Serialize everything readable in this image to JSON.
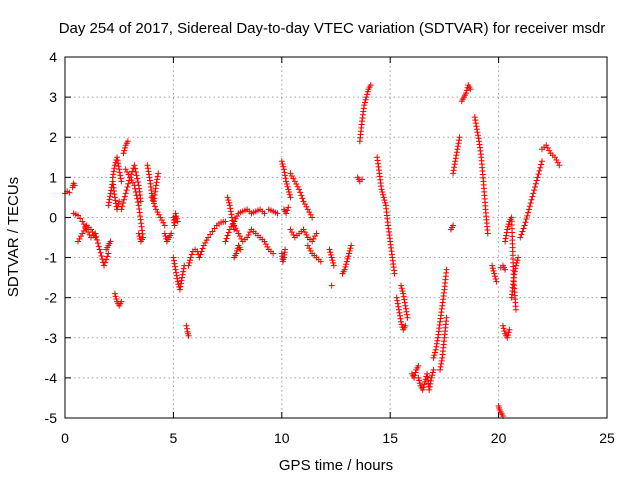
{
  "chart_data": {
    "type": "scatter",
    "title": "Day 254 of 2017, Sidereal Day-to-day VTEC variation (SDTVAR) for receiver msdr",
    "xlabel": "GPS time / hours",
    "ylabel": "SDTVAR / TECUs",
    "xlim": [
      0,
      25
    ],
    "ylim": [
      -5,
      4
    ],
    "xticks": [
      0,
      5,
      10,
      15,
      20,
      25
    ],
    "yticks": [
      4,
      3,
      2,
      1,
      0,
      -1,
      -2,
      -3,
      -4,
      -5
    ],
    "grid": true,
    "marker": "+",
    "color": "#ff0000",
    "segments": [
      {
        "x": [
          0.0,
          0.1,
          0.2
        ],
        "y": [
          0.6,
          0.65,
          0.62
        ]
      },
      {
        "x": [
          0.35,
          0.4,
          0.45
        ],
        "y": [
          0.75,
          0.85,
          0.8
        ]
      },
      {
        "x": [
          0.4,
          0.6,
          0.8,
          1.0,
          1.2,
          1.4,
          1.6,
          1.8,
          2.0
        ],
        "y": [
          0.1,
          0.05,
          -0.1,
          -0.3,
          -0.5,
          -0.4,
          -0.8,
          -1.2,
          -0.9
        ]
      },
      {
        "x": [
          0.6,
          0.8,
          1.0,
          1.2,
          1.4
        ],
        "y": [
          -0.6,
          -0.4,
          -0.2,
          -0.3,
          -0.5
        ]
      },
      {
        "x": [
          1.9,
          2.0,
          2.1
        ],
        "y": [
          -0.8,
          -0.7,
          -0.6
        ]
      },
      {
        "x": [
          2.2,
          2.3,
          2.4,
          2.5,
          2.6
        ],
        "y": [
          1.0,
          1.3,
          1.5,
          1.2,
          0.9
        ]
      },
      {
        "x": [
          2.0,
          2.1,
          2.2,
          2.3,
          2.4,
          2.5
        ],
        "y": [
          0.3,
          0.6,
          0.9,
          0.5,
          0.2,
          0.4
        ]
      },
      {
        "x": [
          2.3,
          2.4,
          2.5,
          2.6
        ],
        "y": [
          -1.9,
          -2.1,
          -2.2,
          -2.1
        ]
      },
      {
        "x": [
          2.7,
          2.8,
          2.9
        ],
        "y": [
          1.6,
          1.8,
          1.9
        ]
      },
      {
        "x": [
          2.6,
          2.8,
          3.0,
          3.2,
          3.4,
          3.5
        ],
        "y": [
          0.2,
          0.6,
          1.0,
          1.3,
          0.8,
          0.4
        ]
      },
      {
        "x": [
          2.8,
          3.0,
          3.2,
          3.4,
          3.6
        ],
        "y": [
          1.2,
          1.0,
          0.8,
          0.3,
          -0.5
        ]
      },
      {
        "x": [
          3.4,
          3.5,
          3.6
        ],
        "y": [
          -0.4,
          -0.6,
          -0.5
        ]
      },
      {
        "x": [
          3.8,
          3.9,
          4.0,
          4.1,
          4.2,
          4.3
        ],
        "y": [
          1.3,
          1.0,
          0.6,
          0.4,
          0.8,
          1.1
        ]
      },
      {
        "x": [
          4.0,
          4.2,
          4.4,
          4.6
        ],
        "y": [
          0.5,
          0.2,
          0.0,
          -0.2
        ]
      },
      {
        "x": [
          4.6,
          4.7,
          4.8,
          4.9
        ],
        "y": [
          -0.4,
          -0.6,
          -0.5,
          -0.4
        ]
      },
      {
        "x": [
          5.0,
          5.05,
          5.1,
          5.2
        ],
        "y": [
          0.0,
          -0.2,
          0.1,
          -0.1
        ]
      },
      {
        "x": [
          5.0,
          5.1,
          5.2,
          5.3,
          5.4,
          5.5
        ],
        "y": [
          -1.0,
          -1.3,
          -1.6,
          -1.8,
          -1.5,
          -1.2
        ]
      },
      {
        "x": [
          5.6,
          5.65,
          5.7
        ],
        "y": [
          -2.7,
          -2.85,
          -2.95
        ]
      },
      {
        "x": [
          5.7,
          5.8,
          5.9,
          6.0,
          6.1,
          6.2,
          6.4,
          6.6,
          6.8,
          7.0,
          7.2,
          7.4
        ],
        "y": [
          -1.2,
          -1.0,
          -0.85,
          -0.8,
          -0.85,
          -1.0,
          -0.7,
          -0.5,
          -0.35,
          -0.2,
          -0.12,
          -0.1
        ]
      },
      {
        "x": [
          7.5,
          7.6,
          7.7,
          7.8
        ],
        "y": [
          0.5,
          0.3,
          0.0,
          -0.3
        ]
      },
      {
        "x": [
          7.4,
          7.6,
          7.8,
          8.0,
          8.2,
          8.4,
          8.6,
          8.8,
          9.0,
          9.2
        ],
        "y": [
          -0.6,
          -0.3,
          -0.1,
          0.1,
          0.15,
          0.2,
          0.1,
          0.15,
          0.2,
          0.1
        ]
      },
      {
        "x": [
          7.8,
          8.0,
          8.2,
          8.4,
          8.6,
          8.8,
          9.0,
          9.2,
          9.4,
          9.6
        ],
        "y": [
          -0.2,
          -0.4,
          -0.6,
          -0.5,
          -0.3,
          -0.4,
          -0.5,
          -0.6,
          -0.8,
          -0.9
        ]
      },
      {
        "x": [
          7.8,
          7.9,
          8.0,
          8.1
        ],
        "y": [
          -1.0,
          -0.9,
          -0.7,
          -0.8
        ]
      },
      {
        "x": [
          9.4,
          9.6,
          9.8
        ],
        "y": [
          0.2,
          0.15,
          0.1
        ]
      },
      {
        "x": [
          10.0,
          10.05,
          10.1,
          10.15
        ],
        "y": [
          -0.9,
          -1.1,
          -1.0,
          -0.8
        ]
      },
      {
        "x": [
          10.0,
          10.1,
          10.2,
          10.3,
          10.4
        ],
        "y": [
          1.4,
          1.2,
          0.9,
          0.7,
          0.5
        ]
      },
      {
        "x": [
          10.1,
          10.2,
          10.3
        ],
        "y": [
          0.2,
          0.1,
          0.25
        ]
      },
      {
        "x": [
          10.4,
          10.6,
          10.8,
          11.0,
          11.2,
          11.4
        ],
        "y": [
          1.1,
          0.9,
          0.7,
          0.4,
          0.2,
          0.0
        ]
      },
      {
        "x": [
          10.4,
          10.6,
          10.8,
          11.0,
          11.2,
          11.4,
          11.6
        ],
        "y": [
          -0.3,
          -0.5,
          -0.4,
          -0.3,
          -0.5,
          -0.6,
          -0.4
        ]
      },
      {
        "x": [
          11.2,
          11.4,
          11.6,
          11.8
        ],
        "y": [
          -0.7,
          -0.9,
          -1.0,
          -1.1
        ]
      },
      {
        "x": [
          12.2,
          12.3,
          12.4
        ],
        "y": [
          -0.8,
          -1.0,
          -1.2
        ]
      },
      {
        "x": [
          12.3
        ],
        "y": [
          -1.7
        ]
      },
      {
        "x": [
          12.8,
          12.9,
          13.0,
          13.1,
          13.2
        ],
        "y": [
          -1.4,
          -1.3,
          -1.1,
          -0.9,
          -0.7
        ]
      },
      {
        "x": [
          13.5,
          13.6,
          13.7
        ],
        "y": [
          1.0,
          0.9,
          0.95
        ]
      },
      {
        "x": [
          13.6,
          13.7,
          13.8,
          13.9,
          14.0,
          14.1
        ],
        "y": [
          1.9,
          2.4,
          2.8,
          3.0,
          3.2,
          3.3
        ]
      },
      {
        "x": [
          14.4,
          14.5,
          14.6,
          14.7,
          14.8,
          14.9,
          15.0,
          15.1,
          15.2
        ],
        "y": [
          1.5,
          1.1,
          0.7,
          0.5,
          0.3,
          -0.2,
          -0.6,
          -1.0,
          -1.4
        ]
      },
      {
        "x": [
          15.3,
          15.4,
          15.5,
          15.6,
          15.7
        ],
        "y": [
          -2.0,
          -2.3,
          -2.6,
          -2.8,
          -2.7
        ]
      },
      {
        "x": [
          15.5,
          15.6,
          15.7,
          15.8
        ],
        "y": [
          -1.7,
          -1.9,
          -2.2,
          -2.5
        ]
      },
      {
        "x": [
          16.0,
          16.1,
          16.2,
          16.3
        ],
        "y": [
          -3.9,
          -4.0,
          -3.8,
          -3.7
        ]
      },
      {
        "x": [
          16.3,
          16.4,
          16.5,
          16.6,
          16.7,
          16.8,
          16.9,
          17.0
        ],
        "y": [
          -4.0,
          -4.2,
          -4.3,
          -4.1,
          -3.9,
          -4.3,
          -4.0,
          -3.8
        ]
      },
      {
        "x": [
          17.0,
          17.1,
          17.2,
          17.3,
          17.4,
          17.5,
          17.6
        ],
        "y": [
          -3.5,
          -3.3,
          -3.0,
          -2.6,
          -2.2,
          -1.8,
          -1.3
        ]
      },
      {
        "x": [
          17.3,
          17.4,
          17.5,
          17.6
        ],
        "y": [
          -3.8,
          -3.5,
          -3.0,
          -2.5
        ]
      },
      {
        "x": [
          17.8,
          17.9
        ],
        "y": [
          -0.3,
          -0.2
        ]
      },
      {
        "x": [
          17.9,
          18.0,
          18.1,
          18.2
        ],
        "y": [
          1.1,
          1.4,
          1.7,
          2.0
        ]
      },
      {
        "x": [
          18.3,
          18.4,
          18.5,
          18.6,
          18.7
        ],
        "y": [
          2.9,
          3.0,
          3.1,
          3.3,
          3.2
        ]
      },
      {
        "x": [
          18.9,
          19.0,
          19.1,
          19.2,
          19.3,
          19.4,
          19.5
        ],
        "y": [
          2.5,
          2.2,
          1.9,
          1.5,
          0.9,
          0.2,
          -0.4
        ]
      },
      {
        "x": [
          19.7,
          19.8,
          19.9
        ],
        "y": [
          -1.2,
          -1.4,
          -1.6
        ]
      },
      {
        "x": [
          20.1,
          20.2,
          20.3
        ],
        "y": [
          -1.25,
          -1.2,
          -1.3
        ]
      },
      {
        "x": [
          20.0,
          20.05,
          20.1,
          20.15,
          20.2
        ],
        "y": [
          -4.7,
          -4.8,
          -4.85,
          -4.9,
          -4.95
        ]
      },
      {
        "x": [
          20.2,
          20.3,
          20.4,
          20.5
        ],
        "y": [
          -2.7,
          -2.9,
          -3.0,
          -2.8
        ]
      },
      {
        "x": [
          20.3,
          20.4,
          20.5,
          20.6,
          20.7,
          20.8
        ],
        "y": [
          -0.6,
          -0.3,
          -0.1,
          0.0,
          -1.6,
          -2.3
        ]
      },
      {
        "x": [
          20.6,
          20.7,
          20.8,
          20.9
        ],
        "y": [
          -2.0,
          -1.5,
          -1.2,
          -1.0
        ]
      },
      {
        "x": [
          21.0,
          21.2,
          21.4,
          21.6,
          21.8,
          22.0
        ],
        "y": [
          -0.5,
          -0.2,
          0.2,
          0.6,
          1.0,
          1.4
        ]
      },
      {
        "x": [
          22.0,
          22.2,
          22.4,
          22.6,
          22.8
        ],
        "y": [
          1.7,
          1.8,
          1.6,
          1.5,
          1.3
        ]
      }
    ]
  }
}
